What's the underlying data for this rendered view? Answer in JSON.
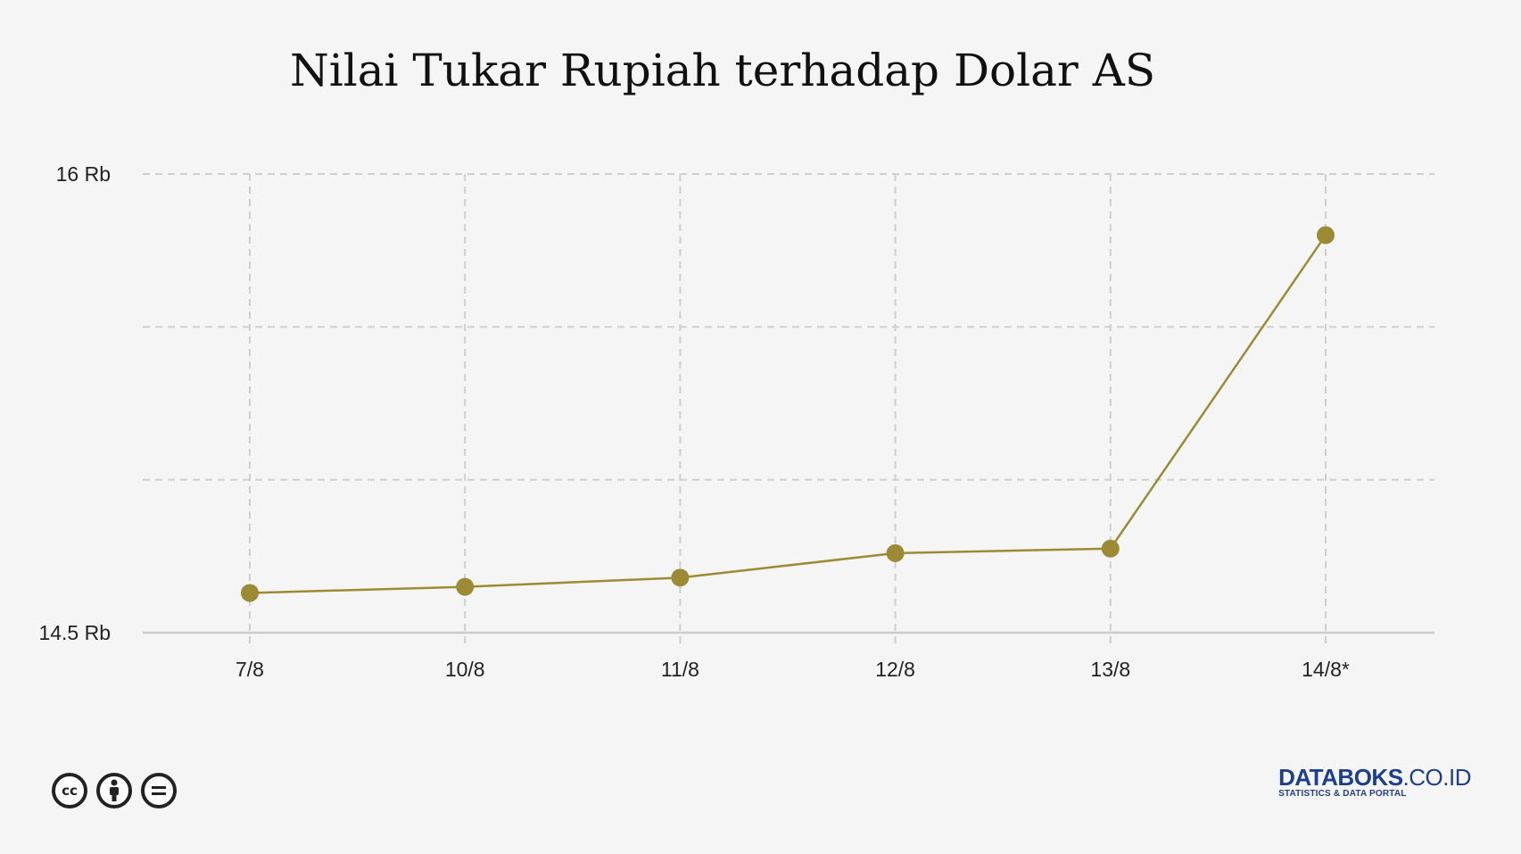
{
  "chart_data": {
    "type": "line",
    "title": "Nilai Tukar Rupiah terhadap Dolar AS",
    "xlabel": "",
    "ylabel": "",
    "categories": [
      "7/8",
      "10/8",
      "11/8",
      "12/8",
      "13/8",
      "14/8*"
    ],
    "series": [
      {
        "color": "#9c8b34",
        "values": [
          14630,
          14650,
          14680,
          14760,
          14775,
          15800
        ]
      }
    ],
    "ylim": [
      14500,
      16000
    ],
    "y_ticks": [
      {
        "value": 16000,
        "label": "16 Rb"
      },
      {
        "value": 14500,
        "label": "14.5 Rb"
      }
    ],
    "y_gridlines": [
      16000,
      15500,
      15000,
      14500
    ],
    "grid": true,
    "legend": "none"
  },
  "footer": {
    "license_icons": [
      "cc-icon",
      "by-icon",
      "nd-icon"
    ],
    "brand_bold": "DATABOKS",
    "brand_light": ".CO.ID",
    "brand_tagline": "STATISTICS & DATA PORTAL"
  },
  "colors": {
    "background": "#f5f5f5",
    "line": "#9c8b34",
    "grid": "#cfcfcf",
    "brand": "#1d3f8f"
  }
}
